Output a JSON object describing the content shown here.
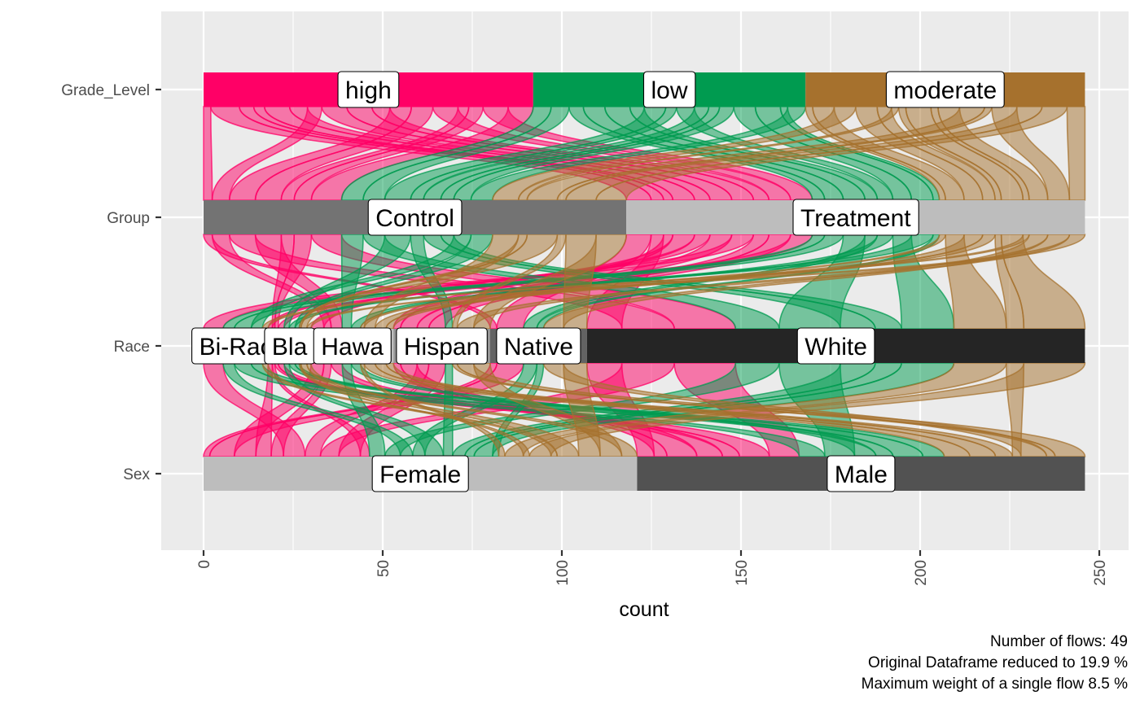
{
  "chart_data": {
    "type": "alluvial",
    "xlabel": "count",
    "ylabel": "",
    "xlim": [
      -12,
      257
    ],
    "x_ticks": [
      0,
      50,
      100,
      150,
      200,
      250
    ],
    "axes": [
      "Grade_Level",
      "Group",
      "Race",
      "Sex"
    ],
    "total": 246,
    "nodes": {
      "Grade_Level": [
        {
          "label": "high",
          "value": 92,
          "color": "#FF0066"
        },
        {
          "label": "low",
          "value": 76,
          "color": "#009B50"
        },
        {
          "label": "moderate",
          "value": 78,
          "color": "#A6712D"
        }
      ],
      "Group": [
        {
          "label": "Control",
          "value": 118,
          "color": "#737373"
        },
        {
          "label": "Treatment",
          "value": 128,
          "color": "#BDBDBD"
        }
      ],
      "Race": [
        {
          "label": "Bi-Racial",
          "display": "Bi-Rac",
          "value": 18,
          "color": "#F0F0F0"
        },
        {
          "label": "Black",
          "display": "Bla",
          "value": 12,
          "color": "#D9D9D9"
        },
        {
          "label": "Hawaiian",
          "display": "Hawa",
          "value": 23,
          "color": "#BDBDBD"
        },
        {
          "label": "Hispanic",
          "display": "Hispan",
          "value": 27,
          "color": "#969696"
        },
        {
          "label": "Native",
          "display": "Native",
          "value": 27,
          "color": "#636363"
        },
        {
          "label": "White",
          "display": "White",
          "value": 139,
          "color": "#252525"
        }
      ],
      "Sex": [
        {
          "label": "Female",
          "value": 121,
          "color": "#BDBDBD"
        },
        {
          "label": "Male",
          "value": 125,
          "color": "#525252"
        }
      ]
    },
    "caption_lines": [
      "Number of flows: 49",
      "Original Dataframe reduced to 19.9 %",
      "Maximum weight of a single flow 8.5 %"
    ],
    "grid": true,
    "background": "#EBEBEB"
  }
}
